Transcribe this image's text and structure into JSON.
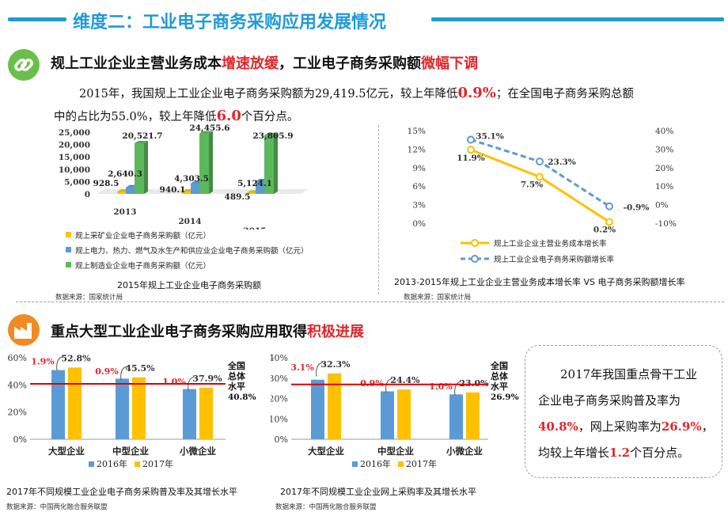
{
  "header": {
    "title": "维度二：工业电子商务采购应用发展情况"
  },
  "section1": {
    "title_part1": "规上工业企业主营业务成本",
    "title_red1": "增速放缓",
    "title_part2": "，工业电子商务采购额",
    "title_red2": "微幅下调",
    "para_a": "2015年，我国规上工业企业电子商务采购额为29,419.5亿元，较上年降低",
    "para_b": "0.9%",
    "para_c": "；在全国电子商务采购总额",
    "para_d": "中的占比为55.0%，较上年降低",
    "para_e": "6.0",
    "para_f": "个百分点。"
  },
  "section2": {
    "title_part1": "重点大型工业企业电子商务采购应用取得",
    "title_red": "积极进展"
  },
  "callout": {
    "line1": "2017年我国重点骨干工业",
    "line2": "企业电子商务采购普及率为",
    "val1": "40.8%",
    "mid": "，网上采购率为",
    "val2": "26.9%",
    "tail": "，",
    "line4a": "均较上年增长",
    "val3": "1.2",
    "line4b": "个百分点。"
  },
  "colors": {
    "accent_blue": "#1f9bd7",
    "red": "#e0262b",
    "bar_blue": "#5b9bd5",
    "bar_yellow": "#ffc000",
    "bar_green": "#5cb85c",
    "icon_green": "#6abf4b",
    "icon_orange": "#f08a24"
  },
  "icons": {
    "section1": "link-icon",
    "section2": "factory-icon"
  },
  "chart_data": [
    {
      "type": "bar",
      "title": "2015年规上工业企业电子商务采购额",
      "source": "数据来源：国家统计局",
      "categories": [
        "2013",
        "2014",
        "2015"
      ],
      "y_ticks": [
        "25,000",
        "20,000",
        "15,000",
        "10,000",
        "5,000",
        "0"
      ],
      "ylim": [
        0,
        25000
      ],
      "series": [
        {
          "name": "规上采矿业企业电子商务采购额（亿元）",
          "values": [
            928.5,
            940.1,
            489.5
          ],
          "labels": [
            "928.5",
            "940.1",
            "489.5"
          ]
        },
        {
          "name": "规上电力、热力、燃气及水生产和供应业企业电子商务采购额（亿元）",
          "values": [
            2640.3,
            4303.5,
            5124.1
          ],
          "labels": [
            "2,640.3",
            "4,303.5",
            "5,124.1"
          ]
        },
        {
          "name": "规上制造业企业电子商务采购额（亿元）",
          "values": [
            20521.7,
            24455.6,
            23805.9
          ],
          "labels": [
            "20,521.7",
            "24,455.6",
            "23,805.9"
          ]
        }
      ]
    },
    {
      "type": "line",
      "title": "2013-2015年规上工业企业主营业务成本增长率 VS 电子商务采购额增长率",
      "source": "数据来源：国家统计局",
      "x": [
        "2013",
        "2014",
        "2015"
      ],
      "y_left_ticks": [
        "15%",
        "12%",
        "9%",
        "6%",
        "3%",
        "0%"
      ],
      "y_left_lim": [
        0,
        15
      ],
      "y_right_ticks": [
        "40%",
        "30%",
        "20%",
        "10%",
        "0%",
        "-10%"
      ],
      "y_right_lim": [
        -10,
        40
      ],
      "series": [
        {
          "name": "规上工业企业主营业务成本增长率",
          "axis": "left",
          "values": [
            11.9,
            7.5,
            0.2
          ],
          "labels": [
            "11.9%",
            "7.5%",
            "0.2%"
          ]
        },
        {
          "name": "规上工业企业电子商务采购额增长率",
          "axis": "right",
          "values": [
            35.1,
            23.3,
            -0.9
          ],
          "labels": [
            "35.1%",
            "23.3%",
            "-0.9%"
          ]
        }
      ]
    },
    {
      "type": "bar",
      "title": "2017年不同规模工业企业电子商务采购普及率及其增长水平",
      "source": "数据来源：中国两化融合服务联盟",
      "categories": [
        "大型企业",
        "中型企业",
        "小微企业"
      ],
      "y_ticks": [
        "60%",
        "40%",
        "20%",
        "0%"
      ],
      "ylim": [
        0,
        60
      ],
      "series": [
        {
          "name": "2016年",
          "values": [
            50.9,
            44.6,
            36.9
          ]
        },
        {
          "name": "2017年",
          "values": [
            52.8,
            45.5,
            37.9
          ],
          "labels": [
            "52.8%",
            "45.5%",
            "37.9%"
          ]
        }
      ],
      "growth_labels": [
        "1.9%",
        "0.9%",
        "1.0%"
      ],
      "reference": {
        "value": 40.8,
        "label_lines": [
          "全国",
          "总体",
          "水平"
        ],
        "value_label": "40.8%"
      }
    },
    {
      "type": "bar",
      "title": "2017年不同规模工业企业网上采购率及其增长水平",
      "source": "数据来源：中国两化融合服务联盟",
      "categories": [
        "大型企业",
        "中型企业",
        "小微企业"
      ],
      "y_ticks": [
        "40%",
        "30%",
        "20%",
        "10%",
        "0%"
      ],
      "ylim": [
        0,
        40
      ],
      "series": [
        {
          "name": "2016年",
          "values": [
            29.2,
            23.5,
            22.0
          ]
        },
        {
          "name": "2017年",
          "values": [
            32.3,
            24.4,
            23.0
          ],
          "labels": [
            "32.3%",
            "24.4%",
            "23.0%"
          ]
        }
      ],
      "growth_labels": [
        "3.1%",
        "0.9%",
        "1.0%"
      ],
      "reference": {
        "value": 26.9,
        "label_lines": [
          "全国",
          "总体",
          "水平"
        ],
        "value_label": "26.9%"
      }
    }
  ]
}
